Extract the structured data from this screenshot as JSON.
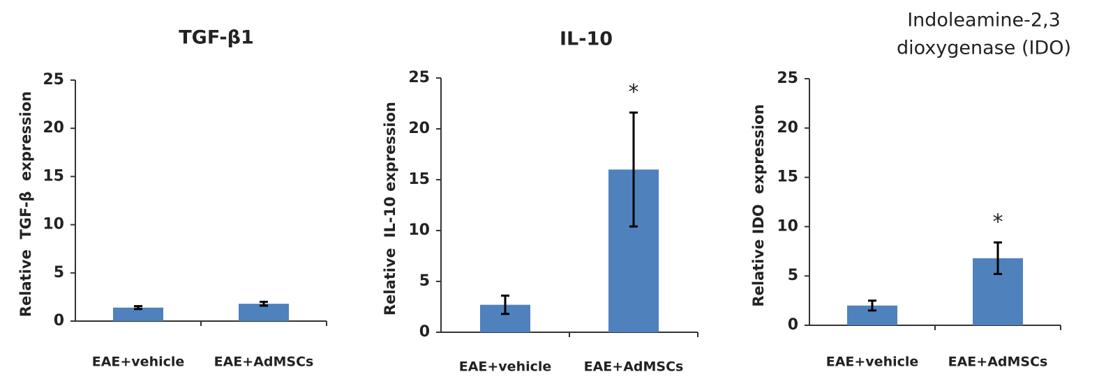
{
  "chart_data": [
    {
      "type": "bar",
      "title": "TGF-β1",
      "y_label": "Relative  TGF-β  expression",
      "categories": [
        "EAE+vehicle",
        "EAE+AdMSCs"
      ],
      "values": [
        1.4,
        1.8
      ],
      "errors": [
        0.15,
        0.2
      ],
      "color": "#4f81bd",
      "ylim": [
        0,
        25
      ],
      "yticks": [
        0,
        5,
        10,
        15,
        20,
        25
      ],
      "annotations": []
    },
    {
      "type": "bar",
      "title": "IL-10",
      "y_label": "Relative  IL-10 expression",
      "categories": [
        "EAE+vehicle",
        "EAE+AdMSCs"
      ],
      "values": [
        2.7,
        16.0
      ],
      "errors": [
        0.9,
        5.6
      ],
      "color": "#4f81bd",
      "ylim": [
        0,
        25
      ],
      "yticks": [
        0,
        5,
        10,
        15,
        20,
        25
      ],
      "annotations": [
        {
          "category": "EAE+AdMSCs",
          "text": "*"
        }
      ]
    },
    {
      "type": "bar",
      "title": [
        "Indoleamine-2,3",
        "dioxygenase (IDO)"
      ],
      "y_label": "Relative IDO  expression",
      "categories": [
        "EAE+vehicle",
        "EAE+AdMSCs"
      ],
      "values": [
        2.0,
        6.8
      ],
      "errors": [
        0.5,
        1.6
      ],
      "color": "#4f81bd",
      "ylim": [
        0,
        25
      ],
      "yticks": [
        0,
        5,
        10,
        15,
        20,
        25
      ],
      "annotations": [
        {
          "category": "EAE+AdMSCs",
          "text": "*"
        }
      ]
    }
  ]
}
